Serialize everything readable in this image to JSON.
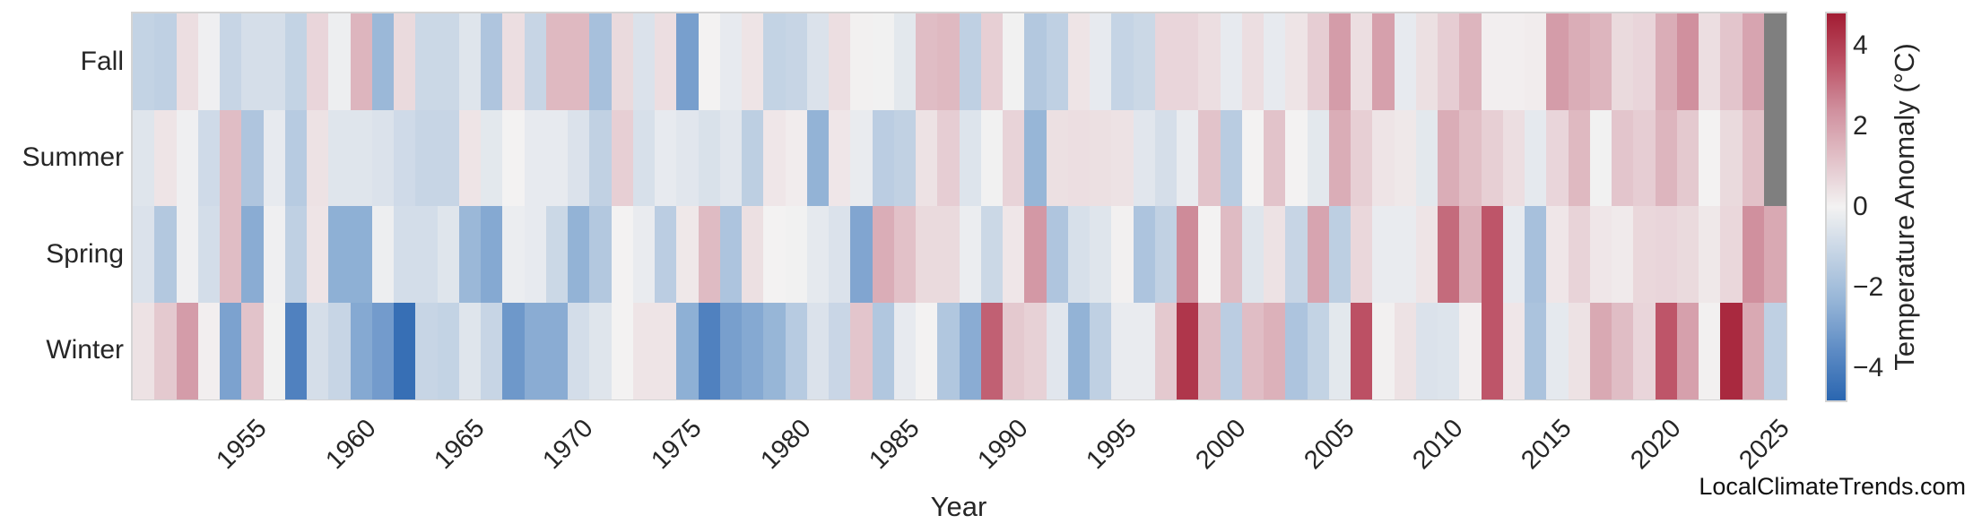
{
  "watermark": "LocalClimateTrends.com",
  "chart_data": {
    "type": "heatmap",
    "xlabel": "Year",
    "year_start": 1950,
    "x_tick_labels": [
      "1955",
      "1960",
      "1965",
      "1970",
      "1975",
      "1980",
      "1985",
      "1990",
      "1995",
      "2000",
      "2005",
      "2010",
      "2015",
      "2020",
      "2025"
    ],
    "rows": [
      "Fall",
      "Summer",
      "Spring",
      "Winter"
    ],
    "colorbar": {
      "label": "Temperature Anomaly (°C)",
      "tick_labels": [
        "4",
        "2",
        "0",
        "−2",
        "−4"
      ],
      "tick_values": [
        4,
        2,
        0,
        -2,
        -4
      ],
      "vmin": -4.8,
      "vmax": 4.8,
      "color_positive_max": "#A21C33",
      "color_positive_mid": "#BC5064",
      "color_positive_soft": "#D0909E",
      "color_center": "#F3F2F2",
      "color_negative_soft": "#93B3D6",
      "color_negative_mid": "#5C8AC4",
      "color_negative_max": "#2A66B0",
      "missing_color": "#7F7F7F"
    },
    "legend_position": "right",
    "grid": false,
    "series": [
      {
        "name": "Fall",
        "values": [
          -1.2,
          -1.3,
          0.5,
          -0.1,
          -1.1,
          -0.75,
          -0.75,
          -1.2,
          0.7,
          -0.15,
          1.5,
          -2.2,
          0.6,
          -1.0,
          -1.0,
          -0.5,
          -1.7,
          0.5,
          -1.1,
          1.4,
          1.4,
          -1.9,
          0.6,
          -0.6,
          0.5,
          -3.0,
          0.0,
          -0.3,
          0.35,
          -1.2,
          -1.1,
          -0.6,
          0.5,
          0.05,
          -0.05,
          -0.4,
          1.3,
          1.4,
          -1.3,
          0.85,
          -0.05,
          -1.6,
          -1.3,
          0.35,
          -0.3,
          -1.15,
          -1.0,
          0.7,
          0.7,
          0.5,
          -0.3,
          0.5,
          -0.3,
          0.35,
          0.9,
          2.1,
          0.5,
          2.0,
          -0.3,
          0.45,
          0.9,
          1.5,
          0.1,
          0.1,
          0.15,
          2.1,
          1.7,
          1.5,
          0.6,
          0.7,
          1.7,
          2.4,
          0.5,
          1.1,
          1.9,
          null
        ]
      },
      {
        "name": "Summer",
        "values": [
          -0.5,
          0.35,
          -0.1,
          -0.9,
          1.3,
          -1.7,
          -0.3,
          -1.5,
          0.4,
          -0.5,
          -0.5,
          -0.6,
          -0.9,
          -1.1,
          -1.1,
          0.35,
          -0.4,
          0.0,
          -0.3,
          -0.3,
          -0.6,
          -1.25,
          0.85,
          -0.7,
          -0.3,
          -0.45,
          -0.65,
          -0.45,
          -1.35,
          0.3,
          0.15,
          -2.4,
          0.3,
          -0.25,
          -1.4,
          -1.25,
          0.4,
          0.9,
          -0.55,
          -0.05,
          0.75,
          -2.3,
          0.45,
          0.5,
          0.45,
          0.4,
          -0.45,
          -0.75,
          -0.25,
          1.15,
          -1.45,
          0.0,
          1.15,
          0.0,
          -0.4,
          1.7,
          0.85,
          0.35,
          0.25,
          -0.4,
          1.7,
          1.25,
          0.85,
          0.5,
          -0.35,
          0.7,
          1.4,
          -0.05,
          1.1,
          0.9,
          1.5,
          1.0,
          0.0,
          0.6,
          1.2,
          null
        ]
      },
      {
        "name": "Spring",
        "values": [
          -0.6,
          -1.6,
          -0.1,
          -0.8,
          1.3,
          -2.6,
          -0.1,
          -1.3,
          0.35,
          -2.5,
          -2.5,
          -0.15,
          -0.8,
          -0.8,
          -0.5,
          -2.2,
          -2.7,
          -0.2,
          -0.3,
          -1.0,
          -2.4,
          -1.6,
          0.0,
          -0.25,
          -1.4,
          0.25,
          1.35,
          -1.75,
          0.45,
          0.0,
          -0.05,
          -0.35,
          -0.6,
          -2.8,
          1.7,
          1.2,
          0.6,
          0.6,
          -0.2,
          -1.0,
          0.3,
          2.2,
          -1.7,
          -0.7,
          -0.5,
          0.05,
          -1.75,
          -1.25,
          2.5,
          0.0,
          1.35,
          -0.5,
          0.4,
          -1.1,
          1.9,
          -1.35,
          0.65,
          -0.25,
          -0.25,
          0.35,
          3.1,
          1.6,
          3.5,
          -0.3,
          -1.9,
          0.3,
          0.75,
          0.3,
          0.2,
          0.65,
          0.7,
          0.6,
          0.25,
          0.65,
          2.4,
          1.8
        ]
      },
      {
        "name": "Winter",
        "values": [
          0.4,
          1.0,
          2.1,
          0.1,
          -2.9,
          1.15,
          -0.05,
          -3.9,
          -0.75,
          -1.1,
          -2.7,
          -3.1,
          -4.5,
          -1.1,
          -1.2,
          -0.5,
          -1.1,
          -3.2,
          -2.6,
          -2.6,
          -0.8,
          -0.5,
          0.0,
          0.35,
          0.35,
          -2.5,
          -3.9,
          -3.0,
          -2.7,
          -2.3,
          -1.5,
          -0.6,
          -1.05,
          1.1,
          -1.65,
          -0.3,
          0.0,
          -1.65,
          -2.6,
          3.3,
          1.0,
          0.8,
          -0.45,
          -2.4,
          -1.3,
          -0.25,
          -0.25,
          1.0,
          4.2,
          1.3,
          -1.4,
          1.3,
          1.6,
          -1.75,
          -1.2,
          -0.4,
          3.6,
          0.05,
          0.4,
          -0.6,
          -0.55,
          0.1,
          3.5,
          0.3,
          -1.8,
          -0.35,
          0.4,
          1.8,
          1.3,
          0.7,
          3.5,
          2.0,
          0.05,
          4.5,
          1.8,
          -1.3
        ]
      }
    ]
  },
  "layout_note": "seasonal temperature anomaly heatmap, years 1950-2025"
}
